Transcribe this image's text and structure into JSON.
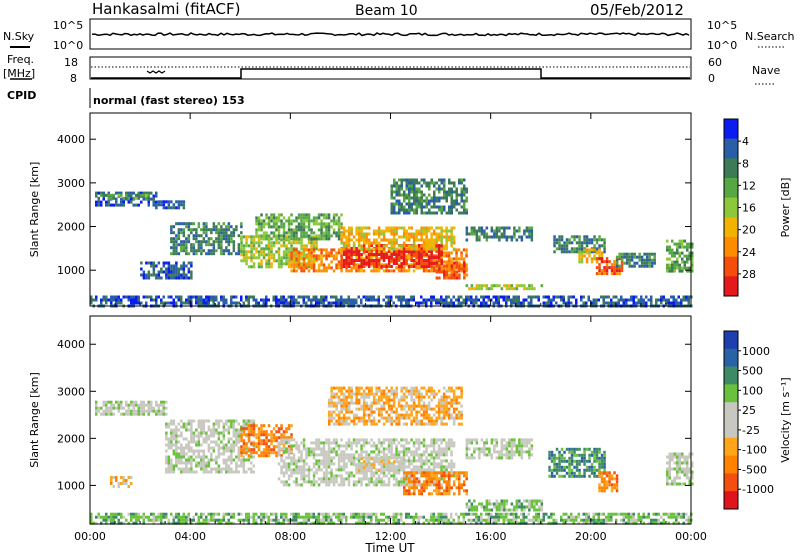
{
  "header": {
    "station": "Hankasalmi (fitACF)",
    "beam": "Beam 10",
    "date": "05/Feb/2012",
    "mode": "normal (fast stereo) 153"
  },
  "side_labels": {
    "n_sky": "N.Sky",
    "n_search": "N.Search",
    "freq": "Freq.",
    "freq_unit": "[MHz]",
    "cpid": "CPID",
    "nave": "Nave"
  },
  "strip_ticks": {
    "noise_left_top": "10^5",
    "noise_left_bottom": "10^0",
    "noise_right_top": "10^5",
    "noise_right_bottom": "10^0",
    "freq_left_top": "18",
    "freq_left_bottom": "8",
    "nave_right_top": "60",
    "nave_right_bottom": "0"
  },
  "chart_data": [
    {
      "type": "heatmap",
      "panel": "power",
      "x_ticks": [
        "00:00",
        "04:00",
        "08:00",
        "12:00",
        "16:00",
        "20:00",
        "00:00"
      ],
      "x_tick_hours": [
        0,
        4,
        8,
        12,
        16,
        20,
        24
      ],
      "xlabel": "Time UT",
      "ylabel": "Slant Range [km]",
      "y_ticks": [
        1000,
        2000,
        3000,
        4000
      ],
      "ylim": [
        180,
        4600
      ],
      "xlim": [
        0,
        24
      ],
      "colorbar_label": "Power [dB]",
      "colorbar_ticks": [
        "4",
        "8",
        "12",
        "16",
        "20",
        "24",
        "28"
      ],
      "colorbar_colors": [
        "#0a1cf0",
        "#2a5fa8",
        "#3d7a56",
        "#57a845",
        "#8cc83a",
        "#f2b200",
        "#ff8c00",
        "#f54d0a",
        "#e41a1c"
      ],
      "regions": [
        {
          "x": [
            0.2,
            2.6
          ],
          "y": [
            2500,
            2800
          ],
          "level": 1
        },
        {
          "x": [
            0.3,
            2.4
          ],
          "y": [
            2650,
            2750
          ],
          "level": 3
        },
        {
          "x": [
            2.6,
            3.7
          ],
          "y": [
            2400,
            2600
          ],
          "level": 1
        },
        {
          "x": [
            3.2,
            6.0
          ],
          "y": [
            1400,
            2100
          ],
          "level": 2
        },
        {
          "x": [
            6.0,
            9.0
          ],
          "y": [
            1100,
            1800
          ],
          "level": 4
        },
        {
          "x": [
            6.6,
            10.0
          ],
          "y": [
            1700,
            2300
          ],
          "level": 3
        },
        {
          "x": [
            8.0,
            15.0
          ],
          "y": [
            1000,
            1500
          ],
          "level": 6
        },
        {
          "x": [
            10.0,
            14.0
          ],
          "y": [
            1100,
            1600
          ],
          "level": 8
        },
        {
          "x": [
            10.0,
            14.5
          ],
          "y": [
            1500,
            2000
          ],
          "level": 5
        },
        {
          "x": [
            12.0,
            15.0
          ],
          "y": [
            2300,
            3100
          ],
          "level": 2
        },
        {
          "x": [
            13.8,
            15.0
          ],
          "y": [
            800,
            1200
          ],
          "level": 7
        },
        {
          "x": [
            15.0,
            17.6
          ],
          "y": [
            1700,
            2000
          ],
          "level": 2
        },
        {
          "x": [
            15.0,
            18.0
          ],
          "y": [
            550,
            680
          ],
          "level": 4
        },
        {
          "x": [
            0.0,
            24.0
          ],
          "y": [
            200,
            420
          ],
          "level": 1
        },
        {
          "x": [
            18.5,
            20.5
          ],
          "y": [
            1400,
            1800
          ],
          "level": 2
        },
        {
          "x": [
            19.5,
            20.4
          ],
          "y": [
            1200,
            1500
          ],
          "level": 5
        },
        {
          "x": [
            20.2,
            21.2
          ],
          "y": [
            900,
            1300
          ],
          "level": 7
        },
        {
          "x": [
            21.0,
            22.5
          ],
          "y": [
            1100,
            1400
          ],
          "level": 2
        },
        {
          "x": [
            23.0,
            24.0
          ],
          "y": [
            1000,
            1700
          ],
          "level": 3
        },
        {
          "x": [
            2.0,
            4.0
          ],
          "y": [
            800,
            1200
          ],
          "level": 1
        }
      ]
    },
    {
      "type": "heatmap",
      "panel": "velocity",
      "x_ticks": [
        "00:00",
        "04:00",
        "08:00",
        "12:00",
        "16:00",
        "20:00",
        "00:00"
      ],
      "x_tick_hours": [
        0,
        4,
        8,
        12,
        16,
        20,
        24
      ],
      "xlabel": "Time UT",
      "ylabel": "Slant Range [km]",
      "y_ticks": [
        1000,
        2000,
        3000,
        4000
      ],
      "ylim": [
        180,
        4600
      ],
      "xlim": [
        0,
        24
      ],
      "colorbar_label": "Velocity [m s⁻¹]",
      "colorbar_ticks": [
        "1000",
        "500",
        "100",
        "25",
        "-25",
        "-100",
        "-500",
        "-1000"
      ],
      "colorbar_colors": [
        "#1e3fb0",
        "#2a62a6",
        "#3e8a66",
        "#6ac23c",
        "#c8c8c0",
        "#c8c8c0",
        "#ffa51a",
        "#ff8200",
        "#f54f10",
        "#e0141c"
      ],
      "regions": [
        {
          "x": [
            0.2,
            3.0
          ],
          "y": [
            2500,
            2800
          ],
          "level": 4
        },
        {
          "x": [
            3.0,
            6.5
          ],
          "y": [
            1300,
            2400
          ],
          "level": 4
        },
        {
          "x": [
            6.0,
            8.0
          ],
          "y": [
            1600,
            2300
          ],
          "level": 7
        },
        {
          "x": [
            7.5,
            14.5
          ],
          "y": [
            1000,
            2000
          ],
          "level": 4
        },
        {
          "x": [
            10.5,
            12.5
          ],
          "y": [
            1300,
            1600
          ],
          "level": 5
        },
        {
          "x": [
            9.5,
            14.8
          ],
          "y": [
            2300,
            3100
          ],
          "level": 6
        },
        {
          "x": [
            12.5,
            15.0
          ],
          "y": [
            800,
            1300
          ],
          "level": 7
        },
        {
          "x": [
            15.0,
            17.6
          ],
          "y": [
            1600,
            2000
          ],
          "level": 4
        },
        {
          "x": [
            15.0,
            18.0
          ],
          "y": [
            500,
            700
          ],
          "level": 3
        },
        {
          "x": [
            0.0,
            24.0
          ],
          "y": [
            200,
            420
          ],
          "level": 3
        },
        {
          "x": [
            18.3,
            20.5
          ],
          "y": [
            1200,
            1800
          ],
          "level": 2
        },
        {
          "x": [
            20.3,
            21.0
          ],
          "y": [
            900,
            1300
          ],
          "level": 7
        },
        {
          "x": [
            23.0,
            24.0
          ],
          "y": [
            1000,
            1700
          ],
          "level": 4
        },
        {
          "x": [
            0.8,
            1.6
          ],
          "y": [
            1000,
            1200
          ],
          "level": 6
        }
      ]
    }
  ]
}
